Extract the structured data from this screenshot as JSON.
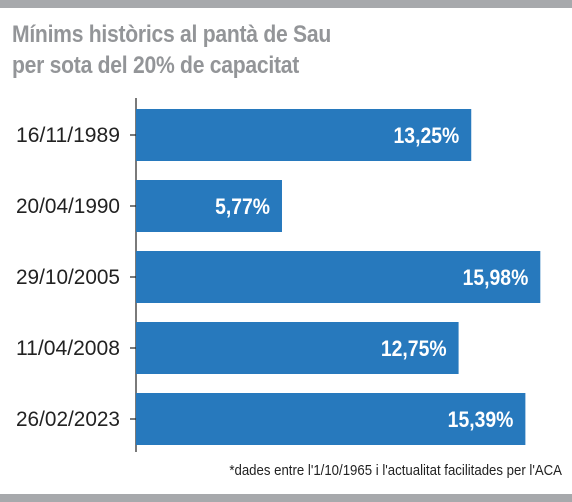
{
  "title": {
    "line1": "Mínims històrics al pantà de Sau",
    "line2": "per sota del 20% de capacitat"
  },
  "footnote": "*dades entre l'1/10/1965 i l'actualitat facilitades per l'ACA",
  "colors": {
    "bar": "#2779bd",
    "frame": "#a7a9ac",
    "title": "#939598",
    "axis": "#222222"
  },
  "chart_data": {
    "type": "bar",
    "orientation": "horizontal",
    "categories": [
      "16/11/1989",
      "20/04/1990",
      "29/10/2005",
      "11/04/2008",
      "26/02/2023"
    ],
    "values": [
      13.25,
      5.77,
      15.98,
      12.75,
      15.39
    ],
    "value_labels": [
      "13,25%",
      "5,77%",
      "15,98%",
      "12,75%",
      "15,39%"
    ],
    "xlim": [
      0,
      16.6
    ],
    "grid": false,
    "legend": "none"
  }
}
